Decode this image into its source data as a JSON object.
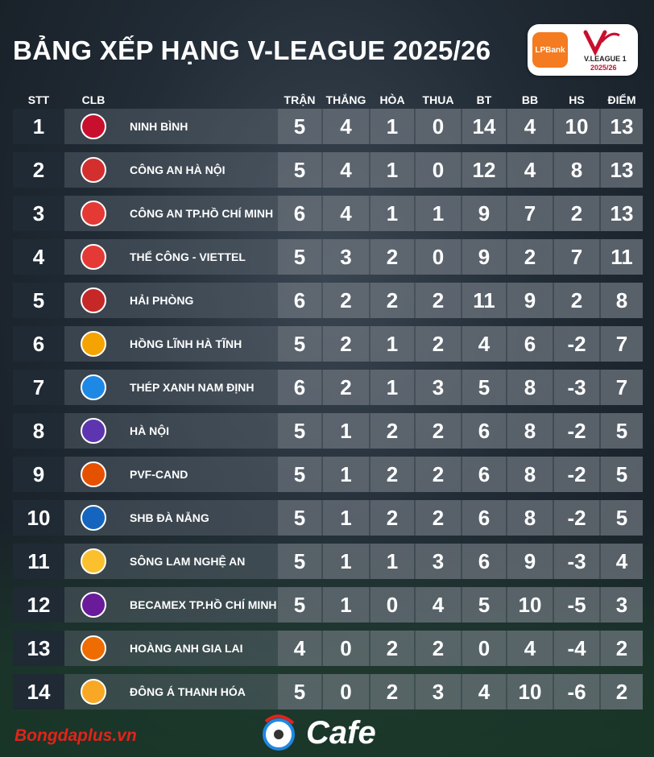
{
  "title": "BẢNG XẾP HẠNG V-LEAGUE 2025/26",
  "badge": {
    "sponsor": "LPBank",
    "league": "V.LEAGUE 1",
    "season": "2025/26"
  },
  "headers": {
    "rank": "STT",
    "club": "CLB",
    "played": "TRẬN",
    "won": "THẮNG",
    "drawn": "HÒA",
    "lost": "THUA",
    "gf": "BT",
    "ga": "BB",
    "gd": "HS",
    "pts": "ĐIỂM"
  },
  "rows": [
    {
      "rank": "1",
      "club": "NINH BÌNH",
      "played": "5",
      "won": "4",
      "drawn": "1",
      "lost": "0",
      "gf": "14",
      "ga": "4",
      "gd": "10",
      "pts": "13",
      "crest": "#c8102e"
    },
    {
      "rank": "2",
      "club": "CÔNG AN HÀ NỘI",
      "played": "5",
      "won": "4",
      "drawn": "1",
      "lost": "0",
      "gf": "12",
      "ga": "4",
      "gd": "8",
      "pts": "13",
      "crest": "#d32f2f"
    },
    {
      "rank": "3",
      "club": "CÔNG AN TP.HỒ CHÍ MINH",
      "played": "6",
      "won": "4",
      "drawn": "1",
      "lost": "1",
      "gf": "9",
      "ga": "7",
      "gd": "2",
      "pts": "13",
      "crest": "#e53935"
    },
    {
      "rank": "4",
      "club": "THỂ CÔNG - VIETTEL",
      "played": "5",
      "won": "3",
      "drawn": "2",
      "lost": "0",
      "gf": "9",
      "ga": "2",
      "gd": "7",
      "pts": "11",
      "crest": "#e53935"
    },
    {
      "rank": "5",
      "club": "HẢI PHÒNG",
      "played": "6",
      "won": "2",
      "drawn": "2",
      "lost": "2",
      "gf": "11",
      "ga": "9",
      "gd": "2",
      "pts": "8",
      "crest": "#c62828"
    },
    {
      "rank": "6",
      "club": "HỒNG LĨNH HÀ TĨNH",
      "played": "5",
      "won": "2",
      "drawn": "1",
      "lost": "2",
      "gf": "4",
      "ga": "6",
      "gd": "-2",
      "pts": "7",
      "crest": "#f4a300"
    },
    {
      "rank": "7",
      "club": "THÉP XANH NAM ĐỊNH",
      "played": "6",
      "won": "2",
      "drawn": "1",
      "lost": "3",
      "gf": "5",
      "ga": "8",
      "gd": "-3",
      "pts": "7",
      "crest": "#1e88e5"
    },
    {
      "rank": "8",
      "club": "HÀ NỘI",
      "played": "5",
      "won": "1",
      "drawn": "2",
      "lost": "2",
      "gf": "6",
      "ga": "8",
      "gd": "-2",
      "pts": "5",
      "crest": "#5e35b1"
    },
    {
      "rank": "9",
      "club": "PVF-CAND",
      "played": "5",
      "won": "1",
      "drawn": "2",
      "lost": "2",
      "gf": "6",
      "ga": "8",
      "gd": "-2",
      "pts": "5",
      "crest": "#e65100"
    },
    {
      "rank": "10",
      "club": "SHB ĐÀ NẴNG",
      "played": "5",
      "won": "1",
      "drawn": "2",
      "lost": "2",
      "gf": "6",
      "ga": "8",
      "gd": "-2",
      "pts": "5",
      "crest": "#1565c0"
    },
    {
      "rank": "11",
      "club": "SÔNG LAM NGHỆ AN",
      "played": "5",
      "won": "1",
      "drawn": "1",
      "lost": "3",
      "gf": "6",
      "ga": "9",
      "gd": "-3",
      "pts": "4",
      "crest": "#fbc02d"
    },
    {
      "rank": "12",
      "club": "BECAMEX TP.HỒ CHÍ MINH",
      "played": "5",
      "won": "1",
      "drawn": "0",
      "lost": "4",
      "gf": "5",
      "ga": "10",
      "gd": "-5",
      "pts": "3",
      "crest": "#6a1b9a"
    },
    {
      "rank": "13",
      "club": "HOÀNG ANH GIA LAI",
      "played": "4",
      "won": "0",
      "drawn": "2",
      "lost": "2",
      "gf": "0",
      "ga": "4",
      "gd": "-4",
      "pts": "2",
      "crest": "#ef6c00"
    },
    {
      "rank": "14",
      "club": "ĐÔNG Á THANH HÓA",
      "played": "5",
      "won": "0",
      "drawn": "2",
      "lost": "3",
      "gf": "4",
      "ga": "10",
      "gd": "-6",
      "pts": "2",
      "crest": "#f9a825"
    }
  ],
  "footer": {
    "brand": "Bongdaplus.vn",
    "cafe": "Cafe"
  }
}
